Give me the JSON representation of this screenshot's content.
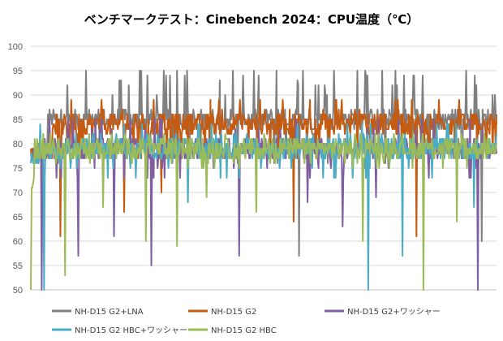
{
  "chart_data": {
    "type": "line",
    "title": "ベンチマークテスト：Cinebench 2024：CPU温度（℃）",
    "xlabel": "",
    "ylabel": "",
    "ylim": [
      50,
      100
    ],
    "yticks": [
      50,
      55,
      60,
      65,
      70,
      75,
      80,
      85,
      90,
      95,
      100
    ],
    "x_count": 600,
    "grid": "horizontal",
    "legend_position": "bottom",
    "series": [
      {
        "name": "NH-D15 G2+LNA",
        "color": "#808080",
        "base": 85,
        "high_values": [
          90,
          95,
          93,
          92,
          95,
          94
        ],
        "high_rate": 0.08,
        "low_values": [
          77,
          76
        ],
        "low_rate": 0.03,
        "dips": [
          {
            "i": 345,
            "v": 57
          },
          {
            "i": 580,
            "v": 60
          }
        ],
        "start_value": 78,
        "rise_at": 22
      },
      {
        "name": "NH-D15 G2",
        "color": "#c55a11",
        "base": 84,
        "high_values": [
          87,
          89,
          86
        ],
        "high_rate": 0.1,
        "low_values": [
          77,
          78
        ],
        "low_rate": 0.08,
        "dips": [
          {
            "i": 38,
            "v": 61
          },
          {
            "i": 120,
            "v": 66
          },
          {
            "i": 168,
            "v": 70
          },
          {
            "i": 338,
            "v": 64
          },
          {
            "i": 496,
            "v": 61
          }
        ],
        "start_value": 78,
        "rise_at": 28
      },
      {
        "name": "NH-D15 G2+ワッシャー",
        "color": "#7f5fa0",
        "base": 79,
        "high_values": [
          83,
          85
        ],
        "high_rate": 0.06,
        "low_values": [
          73,
          75
        ],
        "low_rate": 0.05,
        "dips": [
          {
            "i": 14,
            "v": 50
          },
          {
            "i": 61,
            "v": 57
          },
          {
            "i": 107,
            "v": 61
          },
          {
            "i": 155,
            "v": 55
          },
          {
            "i": 268,
            "v": 57
          },
          {
            "i": 356,
            "v": 68
          },
          {
            "i": 401,
            "v": 63
          },
          {
            "i": 444,
            "v": 69
          },
          {
            "i": 575,
            "v": 50
          }
        ],
        "start_value": 78,
        "rise_at": 10
      },
      {
        "name": "NH-D15 G2 HBC+ワッシャー",
        "color": "#4bacc6",
        "base": 79,
        "high_values": [
          82,
          84
        ],
        "high_rate": 0.06,
        "low_values": [
          75,
          73
        ],
        "low_rate": 0.05,
        "dips": [
          {
            "i": 17,
            "v": 50
          },
          {
            "i": 202,
            "v": 68
          },
          {
            "i": 252,
            "v": 73
          },
          {
            "i": 434,
            "v": 50
          },
          {
            "i": 478,
            "v": 57
          },
          {
            "i": 570,
            "v": 67
          }
        ],
        "start_value": 77,
        "rise_at": 12
      },
      {
        "name": "NH-D15 G2 HBC",
        "color": "#9bbb59",
        "base": 79,
        "high_values": [
          81,
          82
        ],
        "high_rate": 0.05,
        "low_values": [
          76,
          75
        ],
        "low_rate": 0.05,
        "dips": [
          {
            "i": 0,
            "v": 50
          },
          {
            "i": 44,
            "v": 53
          },
          {
            "i": 93,
            "v": 67
          },
          {
            "i": 148,
            "v": 60
          },
          {
            "i": 188,
            "v": 59
          },
          {
            "i": 226,
            "v": 69
          },
          {
            "i": 290,
            "v": 66
          },
          {
            "i": 427,
            "v": 60
          },
          {
            "i": 505,
            "v": 50
          },
          {
            "i": 548,
            "v": 64
          }
        ],
        "start_value": 72,
        "rise_at": 5
      }
    ]
  }
}
